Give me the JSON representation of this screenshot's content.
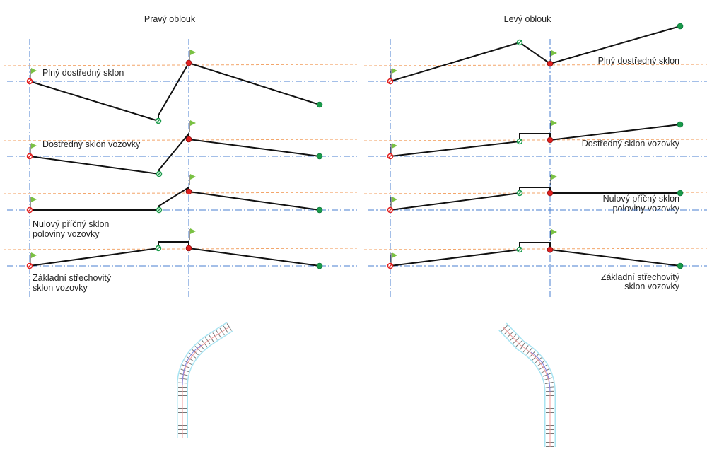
{
  "panels": [
    {
      "title": "Pravý oblouk",
      "rows": [
        {
          "label": [
            "Plný dostředný sklon"
          ]
        },
        {
          "label": [
            "Dostředný sklon vozovky"
          ]
        },
        {
          "label": [
            "Nulový příčný sklon",
            "poloviny vozovky"
          ]
        },
        {
          "label": [
            "Základní střechovitý",
            "sklon vozovky"
          ]
        }
      ]
    },
    {
      "title": "Levý oblouk",
      "rows": [
        {
          "label": [
            "Plný dostředný sklon"
          ]
        },
        {
          "label": [
            "Dostředný sklon vozovky"
          ]
        },
        {
          "label": [
            "Nulový příčný sklon",
            "poloviny vozovky"
          ]
        },
        {
          "label": [
            "Základní střechovitý",
            "sklon vozovky"
          ]
        }
      ]
    }
  ],
  "colors": {
    "axis": "#4a7fd0",
    "reference": "#f3a56a",
    "flag": "#7ac143",
    "start_point": "#e02020",
    "end_point": "#1a9a4a"
  }
}
